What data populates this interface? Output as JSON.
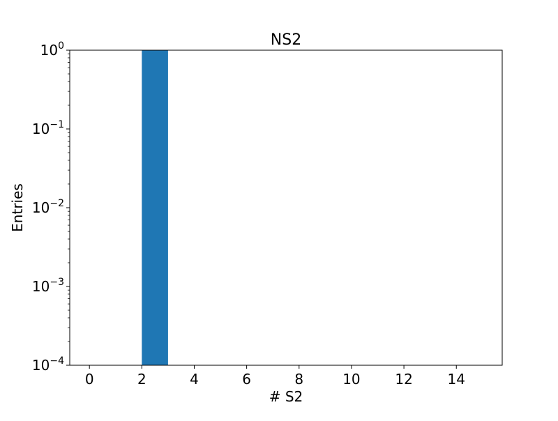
{
  "chart_data": {
    "type": "bar",
    "title": "NS2",
    "xlabel": "# S2",
    "ylabel": "Entries",
    "yscale": "log",
    "xlim": [
      -0.75,
      15.75
    ],
    "ylim": [
      0.0001,
      1
    ],
    "xticks": [
      {
        "value": 0,
        "label": "0"
      },
      {
        "value": 2,
        "label": "2"
      },
      {
        "value": 4,
        "label": "4"
      },
      {
        "value": 6,
        "label": "6"
      },
      {
        "value": 8,
        "label": "8"
      },
      {
        "value": 10,
        "label": "10"
      },
      {
        "value": 12,
        "label": "12"
      },
      {
        "value": 14,
        "label": "14"
      }
    ],
    "yticks": [
      {
        "value": 1,
        "base": "10",
        "exp": "0"
      },
      {
        "value": 0.1,
        "base": "10",
        "exp": "−1"
      },
      {
        "value": 0.01,
        "base": "10",
        "exp": "−2"
      },
      {
        "value": 0.001,
        "base": "10",
        "exp": "−3"
      },
      {
        "value": 0.0001,
        "base": "10",
        "exp": "−4"
      }
    ],
    "bins": [
      {
        "x0": 2,
        "x1": 3,
        "value": 1
      }
    ],
    "bar_color": "#1f77b4",
    "grid": false,
    "legend": null
  }
}
